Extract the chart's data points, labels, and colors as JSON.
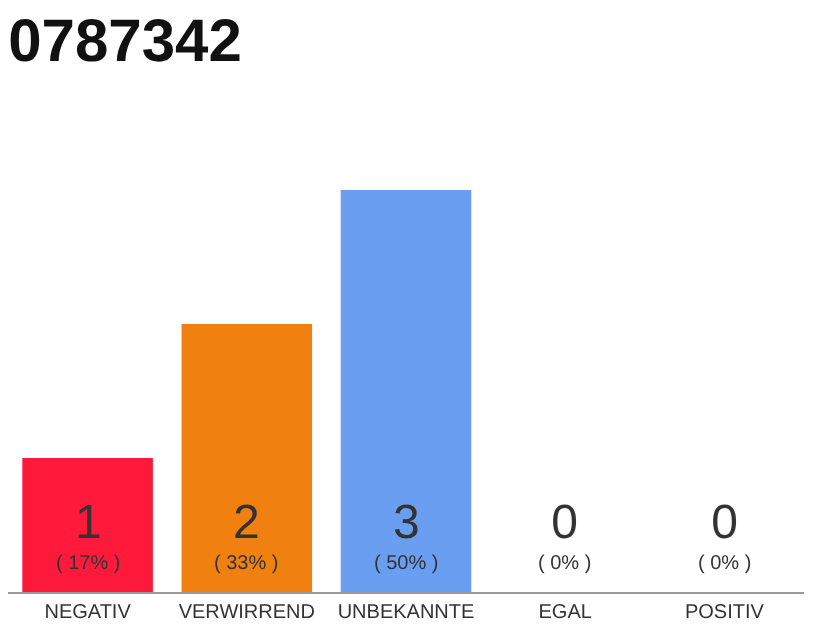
{
  "chart_data": {
    "type": "bar",
    "title": "0787342",
    "categories": [
      "NEGATIV",
      "VERWIRREND",
      "UNBEKANNTE",
      "EGAL",
      "POSITIV"
    ],
    "values": [
      1,
      2,
      3,
      0,
      0
    ],
    "colors": [
      "#ff1a3c",
      "#f08010",
      "#6a9ef0",
      "#cccccc",
      "#cccccc"
    ],
    "value_labels": [
      "1\n( 17% )",
      "2\n( 33% )",
      "3\n( 50% )",
      "0\n( 0% )",
      "0\n( 0% )"
    ],
    "ylim": [
      0,
      3
    ],
    "tick_labels": "x",
    "legend": false
  }
}
